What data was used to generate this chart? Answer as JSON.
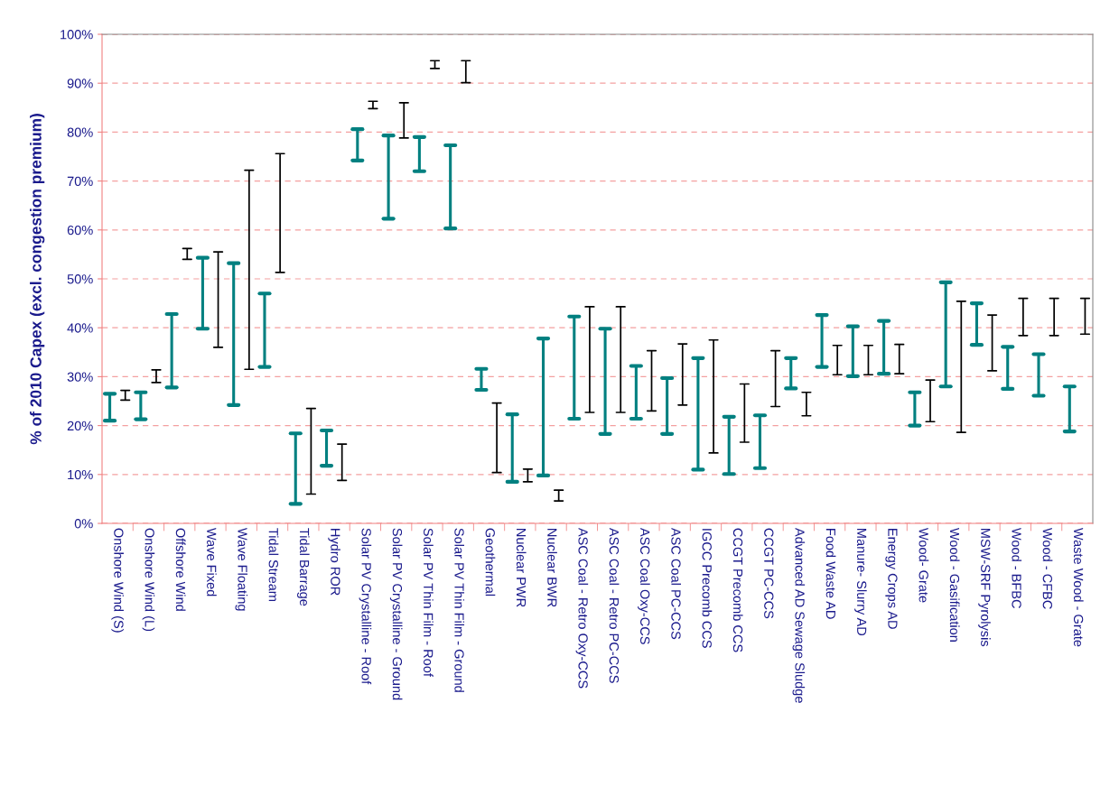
{
  "chart_data": {
    "type": "bar",
    "grid": "y",
    "ylabel": "% of 2010 Capex (excl. congestion premium)",
    "categories": [
      "Onshore Wind (S)",
      "Onshore Wind (L)",
      "Offshore Wind",
      "Wave Fixed",
      "Wave Floating",
      "Tidal Stream",
      "Tidal Barrage",
      "Hydro ROR",
      "Solar PV Crystalline - Roof",
      "Solar PV Crystalline - Ground",
      "Solar PV Thin Film - Roof",
      "Solar PV Thin Film - Ground",
      "Geothermal",
      "Nuclear PWR",
      "Nuclear BWR",
      "ASC Coal - Retro Oxy-CCS",
      "ASC Coal - Retro PC-CCS",
      "ASC Coal Oxy-CCS",
      "ASC Coal PC-CCS",
      "IGCC Precomb CCS",
      "CCGT Precomb CCS",
      "CCGT PC-CCS",
      "Advanced AD Sewage Sludge",
      "Food Waste AD",
      "Manure- Slurry AD",
      "Energy Crops AD",
      "Wood- Grate",
      "Wood - Gasification",
      "MSW-SRF Pyrolysis",
      "Wood - BFBC",
      "Wood - CFBC",
      "Waste Wood - Grate"
    ],
    "series": [
      {
        "color": "#008080",
        "base": [
          21,
          21.3,
          27.8,
          39.8,
          24.2,
          32,
          4,
          11.8,
          74.2,
          62.3,
          72,
          60.3,
          27.3,
          8.5,
          9.8,
          21.4,
          18.3,
          21.4,
          18.3,
          11,
          10.1,
          11.3,
          27.6,
          32,
          30.1,
          30.6,
          20,
          28,
          36.5,
          27.5,
          26.1,
          18.8
        ],
        "values": [
          5.5,
          5.5,
          15,
          14.5,
          29,
          15,
          14.4,
          7.2,
          6.4,
          17,
          7,
          17,
          4.3,
          13.8,
          28,
          20.9,
          21.5,
          10.8,
          11.4,
          22.8,
          11.7,
          10.8,
          6.2,
          10.6,
          10.2,
          10.8,
          6.8,
          21.3,
          8.5,
          8.6,
          8.5,
          9.2
        ]
      },
      {
        "color": "#000000",
        "base": [
          25.2,
          28.8,
          54,
          36,
          31.5,
          51.3,
          6,
          8.8,
          84.8,
          78.8,
          93,
          90.1,
          10.4,
          8.5,
          4.6,
          22.7,
          22.7,
          23,
          24.2,
          14.4,
          16.6,
          23.9,
          22,
          30.4,
          30.4,
          30.6,
          20.8,
          18.6,
          31.2,
          38.4,
          38.4,
          38.7
        ],
        "values": [
          2,
          2.6,
          2.2,
          19.5,
          40.7,
          24.3,
          17.5,
          7.4,
          1.5,
          7.2,
          1.6,
          4.5,
          14.2,
          2.6,
          2.2,
          21.6,
          21.6,
          12.3,
          12.5,
          23.1,
          11.9,
          11.4,
          4.8,
          6,
          6,
          6,
          8.5,
          26.8,
          11.4,
          7.6,
          7.6,
          7.3
        ]
      }
    ],
    "ylim": [
      0,
      100
    ],
    "yticks": [
      {
        "value": 0,
        "label": "0%"
      },
      {
        "value": 10,
        "label": "10%"
      },
      {
        "value": 20,
        "label": "20%"
      },
      {
        "value": 30,
        "label": "30%"
      },
      {
        "value": 40,
        "label": "40%"
      },
      {
        "value": 50,
        "label": "50%"
      },
      {
        "value": 60,
        "label": "60%"
      },
      {
        "value": 70,
        "label": "70%"
      },
      {
        "value": 80,
        "label": "80%"
      },
      {
        "value": 90,
        "label": "90%"
      },
      {
        "value": 100,
        "label": "100%"
      }
    ]
  }
}
